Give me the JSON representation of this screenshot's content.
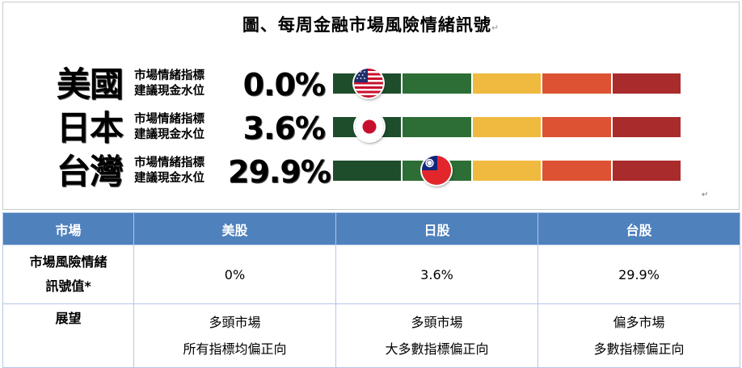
{
  "figure": {
    "title": "圖、每周金融市場風險情緒訊號",
    "caption_line1": "市場情緒指標",
    "caption_line2": "建議現金水位",
    "gauge_colors": [
      "#1e4d2b",
      "#2c6e35",
      "#f0b93f",
      "#dc5232",
      "#a92b2b"
    ],
    "rows": [
      {
        "country": "美國",
        "percent": "0.0%",
        "value": 0.0,
        "flag": "us-flag-icon"
      },
      {
        "country": "日本",
        "percent": "3.6%",
        "value": 3.6,
        "flag": "japan-flag-icon"
      },
      {
        "country": "台灣",
        "percent": "29.9%",
        "value": 29.9,
        "flag": "taiwan-flag-icon"
      }
    ]
  },
  "table": {
    "headers": [
      "市場",
      "美股",
      "日股",
      "台股"
    ],
    "signal_row": {
      "label_line1": "市場風險情緒",
      "label_line2": "訊號值*",
      "values": [
        "0%",
        "3.6%",
        "29.9%"
      ]
    },
    "outlook_row": {
      "label": "展望",
      "cells": [
        {
          "line1": "多頭市場",
          "line2": "所有指標均偏正向"
        },
        {
          "line1": "多頭市場",
          "line2": "大多數指標偏正向"
        },
        {
          "line1": "偏多市場",
          "line2": "多數指標偏正向"
        }
      ]
    }
  }
}
